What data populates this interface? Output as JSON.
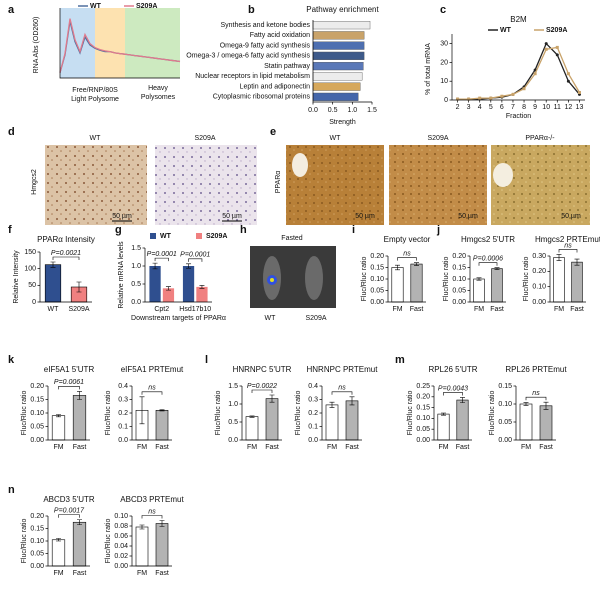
{
  "chart_data": [
    {
      "type": "line",
      "panel": "a",
      "ylabel": "RNA Abs (OD260)",
      "legend": "top",
      "x": [
        0,
        1,
        2,
        3,
        4,
        5,
        6,
        7,
        8,
        9,
        10,
        11,
        12,
        13,
        14,
        15,
        16,
        17,
        18,
        19,
        20,
        21,
        22,
        23,
        24
      ],
      "xlim": [
        0,
        24
      ],
      "ylim": [
        0,
        1
      ],
      "regions": [
        {
          "from": 0,
          "to": 7,
          "color": "#c6def2"
        },
        {
          "from": 7,
          "to": 13,
          "color": "#fde2b0"
        },
        {
          "from": 13,
          "to": 24,
          "color": "#cdeac0"
        }
      ],
      "annotations": [
        "Free/RNP/80S",
        "Light Polysome",
        "Heavy",
        "Polysomes"
      ],
      "series": [
        {
          "name": "WT",
          "color": "#4f6f9f",
          "values": [
            0.08,
            0.35,
            0.86,
            0.55,
            0.38,
            0.62,
            0.5,
            0.45,
            0.42,
            0.4,
            0.4,
            0.38,
            0.37,
            0.36,
            0.35,
            0.34,
            0.33,
            0.32,
            0.31,
            0.3,
            0.29,
            0.28,
            0.27,
            0.26,
            0.25
          ]
        },
        {
          "name": "S209A",
          "color": "#e07a8c",
          "values": [
            0.08,
            0.37,
            0.9,
            0.58,
            0.4,
            0.66,
            0.52,
            0.46,
            0.43,
            0.41,
            0.4,
            0.38,
            0.37,
            0.36,
            0.35,
            0.34,
            0.33,
            0.32,
            0.31,
            0.3,
            0.29,
            0.28,
            0.27,
            0.26,
            0.25
          ]
        }
      ]
    },
    {
      "type": "hbar",
      "panel": "b",
      "title": "Pathway enrichment",
      "xlabel": "Strength",
      "categories": [
        "Synthesis and ketone bodies",
        "Fatty acid oxidation",
        "Omega-9 fatty acid synthesis",
        "Omega-3 / omega-6 fatty acid synthesis",
        "Statin pathway",
        "Nuclear receptors in lipid metabolism",
        "Leptin and adiponectin",
        "Cytoplasmic ribosomal proteins"
      ],
      "values": [
        1.45,
        1.3,
        1.3,
        1.3,
        1.28,
        1.25,
        1.2,
        1.15
      ],
      "colors": [
        "#ececec",
        "#c9a36a",
        "#4e6fb0",
        "#3e5a8a",
        "#5a78b8",
        "#ececec",
        "#d6a85c",
        "#4466aa"
      ],
      "xlim": [
        0,
        1.5
      ],
      "xticks": [
        {
          "value": 0,
          "label": "0.0"
        },
        0.5,
        {
          "value": 1,
          "label": "1.0"
        },
        1.5
      ]
    },
    {
      "type": "line",
      "panel": "c",
      "title": "B2M",
      "ylabel": "% of total mRNA",
      "xlabel": "Fraction",
      "legend": "top",
      "markers": true,
      "x": [
        2,
        3,
        4,
        5,
        6,
        7,
        8,
        9,
        10,
        11,
        12,
        13
      ],
      "xlim": [
        1.5,
        13.5
      ],
      "xticks": [
        2,
        3,
        4,
        5,
        6,
        7,
        8,
        9,
        10,
        11,
        12,
        13
      ],
      "ylim": [
        0,
        33
      ],
      "yticks": [
        0,
        10,
        20,
        30
      ],
      "series": [
        {
          "name": "WT",
          "color": "#222222",
          "values": [
            0.5,
            0.5,
            0.5,
            1,
            1.5,
            3,
            7,
            16,
            30,
            24,
            10,
            3
          ]
        },
        {
          "name": "S209A",
          "color": "#c9a36a",
          "values": [
            0.5,
            0.5,
            1,
            1,
            2,
            3,
            6,
            14,
            27,
            28,
            14,
            4
          ]
        }
      ]
    },
    {
      "type": "bar",
      "panel": "f",
      "title": "PPARα Intensity",
      "ylabel": "Relative Intensity",
      "categories": [
        "WT",
        "S209A"
      ],
      "values": [
        112,
        45
      ],
      "errors": [
        8,
        15
      ],
      "colors": [
        "#2f4f8f",
        "#f08080"
      ],
      "ylim": [
        0,
        150
      ],
      "yticks": [
        0,
        50,
        100,
        150
      ],
      "annotation": "P=0.0021"
    },
    {
      "type": "bar",
      "panel": "g",
      "ylabel": "Relative mRNA levels",
      "xlabel": "Downstream targets of PPARα",
      "legend": "top",
      "categories": [
        "Cpt2",
        "Hsd17b10"
      ],
      "annotations": [
        "P=0.0001",
        "P=0.0001"
      ],
      "series": [
        {
          "name": "WT",
          "color": "#2f4f8f",
          "values": [
            1.0,
            1.0
          ],
          "errors": [
            0.08,
            0.06
          ]
        },
        {
          "name": "S209A",
          "color": "#f08080",
          "values": [
            0.38,
            0.42
          ],
          "errors": [
            0.05,
            0.04
          ]
        }
      ],
      "ylim": [
        0,
        1.5
      ],
      "yticks": [
        {
          "value": 0,
          "label": "0.0"
        },
        0.5,
        {
          "value": 1,
          "label": "1.0"
        },
        1.5
      ]
    },
    {
      "type": "bar",
      "panel": "i",
      "title": "Empty vector",
      "ylabel": "Fluc/Rluc ratio",
      "categories": [
        "FM",
        "Fast"
      ],
      "values": [
        0.15,
        0.165
      ],
      "errors": [
        0.01,
        0.006
      ],
      "colors": [
        "#ffffff",
        "#b3b3b3"
      ],
      "annotation": "ns",
      "ylim": [
        0,
        0.2
      ],
      "yticks": [
        {
          "value": 0,
          "label": "0.00"
        },
        0.05,
        {
          "value": 0.1,
          "label": "0.10"
        },
        0.15,
        {
          "value": 0.2,
          "label": "0.20"
        }
      ]
    },
    {
      "type": "bar",
      "panel": "j",
      "title": "Hmgcs2 5'UTR",
      "ylabel": "Fluc/Rluc ratio",
      "categories": [
        "FM",
        "Fast"
      ],
      "values": [
        0.1,
        0.145
      ],
      "errors": [
        0.005,
        0.004
      ],
      "colors": [
        "#ffffff",
        "#b3b3b3"
      ],
      "annotation": "P=0.0006",
      "ylim": [
        0,
        0.2
      ],
      "yticks": [
        {
          "value": 0,
          "label": "0.00"
        },
        0.05,
        {
          "value": 0.1,
          "label": "0.10"
        },
        0.15,
        {
          "value": 0.2,
          "label": "0.20"
        }
      ]
    },
    {
      "type": "bar",
      "title": "Hmgcs2 PRTEmut",
      "ylabel": "Fluc/Rluc ratio",
      "categories": [
        "FM",
        "Fast"
      ],
      "values": [
        0.29,
        0.26
      ],
      "errors": [
        0.02,
        0.02
      ],
      "colors": [
        "#ffffff",
        "#b3b3b3"
      ],
      "annotation": "ns",
      "ylim": [
        0,
        0.3
      ],
      "yticks": [
        {
          "value": 0,
          "label": "0.00"
        },
        {
          "value": 0.1,
          "label": "0.10"
        },
        {
          "value": 0.2,
          "label": "0.20"
        },
        {
          "value": 0.3,
          "label": "0.30"
        }
      ]
    },
    {
      "type": "bar",
      "panel": "k",
      "title": "eIF5A1 5'UTR",
      "ylabel": "Fluc/Rluc ratio",
      "categories": [
        "FM",
        "Fast"
      ],
      "values": [
        0.09,
        0.165
      ],
      "errors": [
        0.004,
        0.015
      ],
      "colors": [
        "#ffffff",
        "#b3b3b3"
      ],
      "annotation": "P=0.0061",
      "ylim": [
        0,
        0.2
      ],
      "yticks": [
        {
          "value": 0,
          "label": "0.00"
        },
        0.05,
        {
          "value": 0.1,
          "label": "0.10"
        },
        0.15,
        {
          "value": 0.2,
          "label": "0.20"
        }
      ]
    },
    {
      "type": "bar",
      "title": "eIF5A1 PRTEmut",
      "ylabel": "Fluc/Rluc ratio",
      "categories": [
        "FM",
        "Fast"
      ],
      "values": [
        0.22,
        0.22
      ],
      "errors": [
        0.1,
        0.005
      ],
      "colors": [
        "#ffffff",
        "#b3b3b3"
      ],
      "annotation": "ns",
      "ylim": [
        0,
        0.4
      ],
      "yticks": [
        {
          "value": 0,
          "label": "0.0"
        },
        0.1,
        0.2,
        0.3,
        0.4
      ]
    },
    {
      "type": "bar",
      "panel": "l",
      "title": "HNRNPC 5'UTR",
      "ylabel": "Fluc/Rluc ratio",
      "categories": [
        "FM",
        "Fast"
      ],
      "values": [
        0.65,
        1.15
      ],
      "errors": [
        0.02,
        0.1
      ],
      "colors": [
        "#ffffff",
        "#b3b3b3"
      ],
      "annotation": "P=0.0022",
      "ylim": [
        0,
        1.5
      ],
      "yticks": [
        {
          "value": 0,
          "label": "0.0"
        },
        0.5,
        {
          "value": 1,
          "label": "1.0"
        },
        1.5
      ]
    },
    {
      "type": "bar",
      "title": "HNRNPC PRTEmut",
      "ylabel": "Fluc/Rluc ratio",
      "categories": [
        "FM",
        "Fast"
      ],
      "values": [
        0.26,
        0.29
      ],
      "errors": [
        0.02,
        0.03
      ],
      "colors": [
        "#ffffff",
        "#b3b3b3"
      ],
      "annotation": "ns",
      "ylim": [
        0,
        0.4
      ],
      "yticks": [
        {
          "value": 0,
          "label": "0.0"
        },
        0.1,
        0.2,
        0.3,
        0.4
      ]
    },
    {
      "type": "bar",
      "panel": "m",
      "title": "RPL26 5'UTR",
      "ylabel": "Fluc/Rluc ratio",
      "categories": [
        "FM",
        "Fast"
      ],
      "values": [
        0.12,
        0.185
      ],
      "errors": [
        0.005,
        0.012
      ],
      "colors": [
        "#ffffff",
        "#b3b3b3"
      ],
      "annotation": "P=0.0043",
      "ylim": [
        0,
        0.25
      ],
      "yticks": [
        {
          "value": 0,
          "label": "0.00"
        },
        0.05,
        {
          "value": 0.1,
          "label": "0.10"
        },
        0.15,
        {
          "value": 0.2,
          "label": "0.20"
        },
        0.25
      ]
    },
    {
      "type": "bar",
      "title": "RPL26 PRTEmut",
      "ylabel": "Fluc/Rluc ratio",
      "categories": [
        "FM",
        "Fast"
      ],
      "values": [
        0.1,
        0.095
      ],
      "errors": [
        0.004,
        0.01
      ],
      "colors": [
        "#ffffff",
        "#b3b3b3"
      ],
      "annotation": "ns",
      "ylim": [
        0,
        0.15
      ],
      "yticks": [
        {
          "value": 0,
          "label": "0.00"
        },
        0.05,
        {
          "value": 0.1,
          "label": "0.10"
        },
        0.15
      ]
    },
    {
      "type": "bar",
      "panel": "n",
      "title": "ABCD3 5'UTR",
      "ylabel": "Fluc/Rluc ratio",
      "categories": [
        "FM",
        "Fast"
      ],
      "values": [
        0.105,
        0.175
      ],
      "errors": [
        0.005,
        0.01
      ],
      "colors": [
        "#ffffff",
        "#b3b3b3"
      ],
      "annotation": "P=0.0017",
      "ylim": [
        0,
        0.2
      ],
      "yticks": [
        {
          "value": 0,
          "label": "0.00"
        },
        0.05,
        {
          "value": 0.1,
          "label": "0.10"
        },
        0.15,
        {
          "value": 0.2,
          "label": "0.20"
        }
      ]
    },
    {
      "type": "bar",
      "title": "ABCD3 PRTEmut",
      "ylabel": "Fluc/Rluc ratio",
      "categories": [
        "FM",
        "Fast"
      ],
      "values": [
        0.078,
        0.085
      ],
      "errors": [
        0.004,
        0.006
      ],
      "colors": [
        "#ffffff",
        "#b3b3b3"
      ],
      "annotation": "ns",
      "ylim": [
        0,
        0.1
      ],
      "yticks": [
        {
          "value": 0,
          "label": "0.00"
        },
        0.02,
        0.04,
        0.06,
        0.08,
        {
          "value": 0.1,
          "label": "0.10"
        }
      ]
    }
  ],
  "image_panels": {
    "d": {
      "panel": "d",
      "row_label": "Hmgcs2",
      "titles": [
        "WT",
        "S209A"
      ],
      "scale": "50 µm"
    },
    "e": {
      "panel": "e",
      "row_label": "PPARα",
      "titles": [
        "WT",
        "S209A",
        "PPARα-/-"
      ],
      "scale": "50 µm"
    },
    "h": {
      "panel": "h",
      "title": "Fasted",
      "labels": [
        "WT",
        "S209A"
      ]
    }
  }
}
